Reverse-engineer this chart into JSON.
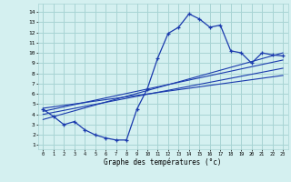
{
  "xlabel": "Graphe des températures (°c)",
  "background_color": "#d4f0f0",
  "grid_color": "#a8d4d4",
  "line_color": "#1a3aad",
  "x_ticks": [
    0,
    1,
    2,
    3,
    4,
    5,
    6,
    7,
    8,
    9,
    10,
    11,
    12,
    13,
    14,
    15,
    16,
    17,
    18,
    19,
    20,
    21,
    22,
    23
  ],
  "y_ticks": [
    1,
    2,
    3,
    4,
    5,
    6,
    7,
    8,
    9,
    10,
    11,
    12,
    13,
    14
  ],
  "ylim": [
    0.6,
    14.8
  ],
  "xlim": [
    -0.5,
    23.5
  ],
  "main_curve": {
    "x": [
      0,
      1,
      2,
      3,
      4,
      5,
      6,
      7,
      8,
      9,
      10,
      11,
      12,
      13,
      14,
      15,
      16,
      17,
      18,
      19,
      20,
      21,
      22,
      23
    ],
    "y": [
      4.5,
      3.8,
      3.0,
      3.3,
      2.5,
      2.0,
      1.7,
      1.5,
      1.5,
      4.5,
      6.5,
      9.5,
      11.9,
      12.5,
      13.8,
      13.3,
      12.5,
      12.7,
      10.2,
      10.0,
      9.0,
      10.0,
      9.8,
      9.7
    ]
  },
  "trend_lines": [
    {
      "x": [
        0,
        23
      ],
      "y": [
        3.5,
        10.0
      ]
    },
    {
      "x": [
        0,
        23
      ],
      "y": [
        4.0,
        8.5
      ]
    },
    {
      "x": [
        0,
        23
      ],
      "y": [
        4.3,
        9.3
      ]
    },
    {
      "x": [
        0,
        23
      ],
      "y": [
        4.6,
        7.8
      ]
    }
  ]
}
